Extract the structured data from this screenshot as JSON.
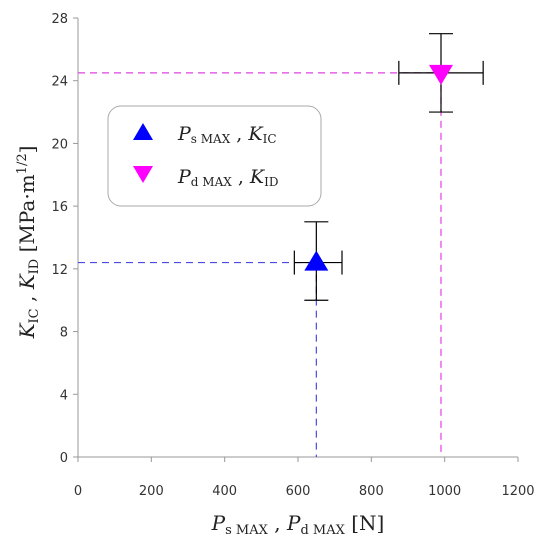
{
  "chart_data": {
    "type": "scatter",
    "xlim": [
      0,
      1200
    ],
    "ylim": [
      0,
      28
    ],
    "x_ticks": [
      "0",
      "200",
      "400",
      "600",
      "800",
      "1000",
      "1200"
    ],
    "y_ticks": [
      "0",
      "4",
      "8",
      "12",
      "16",
      "20",
      "24",
      "28"
    ],
    "grid": false,
    "legend_position": "upper-left inside plot",
    "series": [
      {
        "marker": "triangle-up",
        "color": "#0000ff",
        "guide_color": "#4a4ae0",
        "x": 650,
        "y": 12.4,
        "x_error": [
          590,
          720
        ],
        "y_error": [
          10.0,
          15.0
        ],
        "legend": {
          "p": "P",
          "p_sub": "s MAX",
          "sep": " , ",
          "k": "K",
          "k_sub": "IC"
        }
      },
      {
        "marker": "triangle-down",
        "color": "#ff00ff",
        "guide_color": "#e040e0",
        "x": 990,
        "y": 24.5,
        "x_error": [
          875,
          1105
        ],
        "y_error": [
          22.0,
          27.0
        ],
        "legend": {
          "p": "P",
          "p_sub": "d MAX",
          "sep": " , ",
          "k": "K",
          "k_sub": "ID"
        }
      }
    ],
    "xlabel": {
      "p1": "P",
      "p1_sub": "s MAX",
      "sep1": " , ",
      "p2": "P",
      "p2_sub": "d MAX",
      "unit": " [N]"
    },
    "ylabel": {
      "k1": "K",
      "k1_sub": "IC",
      "sep1": " , ",
      "k2": "K",
      "k2_sub": "ID",
      "unit": " [MPa·m",
      "unit_sup": "1/2",
      "unit_end": "]"
    }
  }
}
